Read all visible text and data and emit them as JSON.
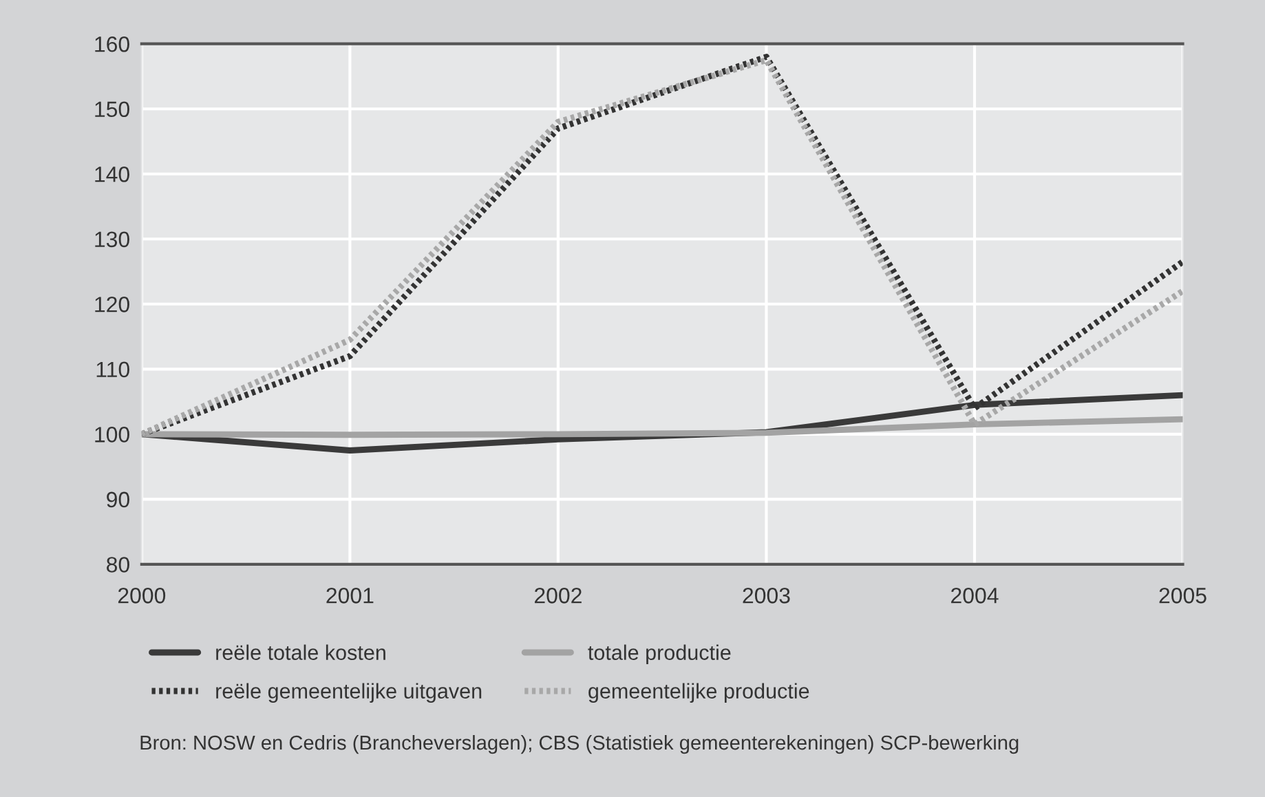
{
  "chart_data": {
    "type": "line",
    "x": [
      2000,
      2001,
      2002,
      2003,
      2004,
      2005
    ],
    "series": [
      {
        "name": "reële totale kosten",
        "color": "#3a3a3a",
        "line_style": "solid",
        "values": [
          100,
          97.5,
          99.2,
          100.3,
          104.5,
          106
        ]
      },
      {
        "name": "totale productie",
        "color": "#a3a3a3",
        "line_style": "solid",
        "values": [
          100,
          99.9,
          100,
          100.2,
          101.5,
          102.3
        ]
      },
      {
        "name": "reële gemeentelijke uitgaven",
        "color": "#333333",
        "line_style": "dotted",
        "values": [
          100,
          112,
          147,
          158,
          104,
          126.5
        ]
      },
      {
        "name": "gemeentelijke productie",
        "color": "#a8a8a8",
        "line_style": "dotted",
        "values": [
          100,
          114.5,
          148,
          157.5,
          101.5,
          122
        ]
      }
    ],
    "xlim": [
      2000,
      2005
    ],
    "xticks": [
      2000,
      2001,
      2002,
      2003,
      2004,
      2005
    ],
    "ylim": [
      80,
      160
    ],
    "yticks": [
      80,
      90,
      100,
      110,
      120,
      130,
      140,
      150,
      160
    ],
    "grid": true,
    "legend": "bottom",
    "annotations": [
      "Bron: NOSW en Cedris (Brancheverslagen); CBS (Statistiek gemeenterekeningen) SCP-bewerking"
    ]
  }
}
